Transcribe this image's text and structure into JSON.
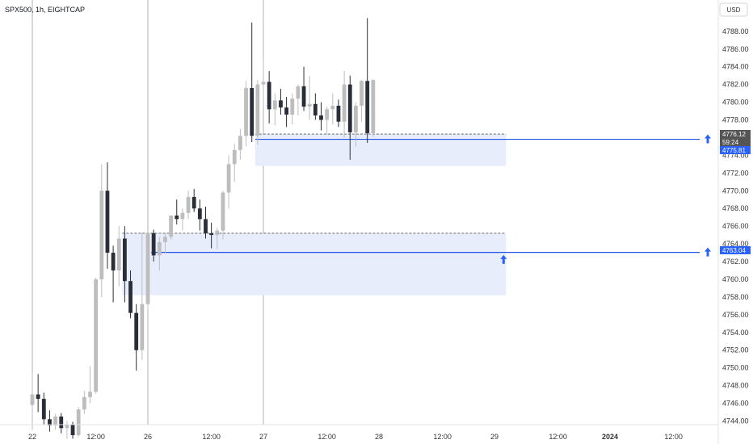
{
  "header": {
    "symbol_label": "SPX500, 1h, EIGHTCAP"
  },
  "currency_button": "USD",
  "colors": {
    "up_candle": "#bdbdbd",
    "down_candle": "#2a2e39",
    "zone_fill": "#e8edfc",
    "level_line": "#1e53e5",
    "badge_blue": "#2962ff",
    "badge_dark": "#555555",
    "grid_vline": "#b0b0b0",
    "axis_text": "#333333"
  },
  "price_badges": [
    {
      "value": "4776.12",
      "style": "dark"
    },
    {
      "value": "59:24",
      "style": "dark"
    },
    {
      "value": "4775.81",
      "style": "blue"
    },
    {
      "value": "4763.04",
      "style": "blue"
    }
  ],
  "chart_data": {
    "type": "candlestick",
    "y_axis": {
      "range": [
        4743,
        4790
      ],
      "ticks": [
        "4744.00",
        "4746.00",
        "4748.00",
        "4750.00",
        "4752.00",
        "4754.00",
        "4756.00",
        "4758.00",
        "4760.00",
        "4762.00",
        "4764.00",
        "4766.00",
        "4768.00",
        "4770.00",
        "4772.00",
        "4774.00",
        "4776.00",
        "4778.00",
        "4780.00",
        "4782.00",
        "4784.00",
        "4786.00",
        "4788.00"
      ]
    },
    "x_axis": {
      "ticks": [
        {
          "label": "22",
          "bar": 0,
          "bold": false
        },
        {
          "label": "12:00",
          "bar": 11,
          "bold": false
        },
        {
          "label": "26",
          "bar": 20,
          "bold": false
        },
        {
          "label": "12:00",
          "bar": 31,
          "bold": false
        },
        {
          "label": "27",
          "bar": 40,
          "bold": false
        },
        {
          "label": "12:00",
          "bar": 51,
          "bold": false
        },
        {
          "label": "28",
          "bar": 60,
          "bold": false
        },
        {
          "label": "12:00",
          "bar": 71,
          "bold": false
        },
        {
          "label": "29",
          "bar": 80,
          "bold": false
        },
        {
          "label": "12:00",
          "bar": 91,
          "bold": false
        },
        {
          "label": "2024",
          "bar": 100,
          "bold": true
        },
        {
          "label": "12:00",
          "bar": 111,
          "bold": false
        }
      ],
      "session_lines_at_bar": [
        0,
        20,
        40
      ]
    },
    "candles": [
      [
        4745.8,
        4749.5,
        4743.0,
        4747.0
      ],
      [
        4747.0,
        4749.3,
        4745.0,
        4746.5
      ],
      [
        4746.5,
        4747.2,
        4743.6,
        4744.2
      ],
      [
        4744.2,
        4745.2,
        4742.8,
        4743.5
      ],
      [
        4743.5,
        4744.8,
        4743.0,
        4744.5
      ],
      [
        4744.5,
        4744.9,
        4742.6,
        4743.2
      ],
      [
        4743.2,
        4744.0,
        4742.0,
        4743.6
      ],
      [
        4743.6,
        4743.9,
        4742.0,
        4742.4
      ],
      [
        4742.4,
        4745.6,
        4742.2,
        4745.3
      ],
      [
        4745.3,
        4747.4,
        4744.8,
        4746.7
      ],
      [
        4746.7,
        4750.2,
        4746.0,
        4747.3
      ],
      [
        4747.3,
        4760.2,
        4747.1,
        4760.0
      ],
      [
        4760.0,
        4773.0,
        4758.0,
        4770.0
      ],
      [
        4770.0,
        4773.2,
        4761.2,
        4763.0
      ],
      [
        4763.0,
        4763.8,
        4757.4,
        4761.0
      ],
      [
        4761.0,
        4766.0,
        4759.2,
        4764.6
      ],
      [
        4764.6,
        4766.0,
        4757.4,
        4759.8
      ],
      [
        4759.8,
        4761.0,
        4755.6,
        4756.2
      ],
      [
        4756.2,
        4757.2,
        4749.7,
        4752.0
      ],
      [
        4752.0,
        4765.3,
        4750.9,
        4757.2
      ],
      [
        4757.2,
        4765.5,
        4756.5,
        4765.2
      ],
      [
        4765.2,
        4765.6,
        4762.0,
        4762.7
      ],
      [
        4762.7,
        4764.8,
        4761.0,
        4764.2
      ],
      [
        4764.2,
        4765.3,
        4763.0,
        4764.8
      ],
      [
        4764.8,
        4767.2,
        4764.5,
        4767.2
      ],
      [
        4767.2,
        4769.0,
        4766.2,
        4766.8
      ],
      [
        4766.8,
        4768.0,
        4765.5,
        4767.5
      ],
      [
        4767.5,
        4770.0,
        4766.8,
        4769.3
      ],
      [
        4769.3,
        4770.2,
        4767.6,
        4768.0
      ],
      [
        4768.0,
        4769.0,
        4765.5,
        4766.8
      ],
      [
        4766.8,
        4768.2,
        4764.6,
        4765.2
      ],
      [
        4765.2,
        4766.4,
        4763.5,
        4765.0
      ],
      [
        4765.0,
        4765.8,
        4763.4,
        4765.5
      ],
      [
        4765.5,
        4770.0,
        4764.5,
        4769.8
      ],
      [
        4769.8,
        4774.0,
        4768.0,
        4773.0
      ],
      [
        4773.0,
        4775.3,
        4771.0,
        4774.6
      ],
      [
        4774.6,
        4777.0,
        4773.5,
        4776.2
      ],
      [
        4776.2,
        4782.4,
        4775.0,
        4781.6
      ],
      [
        4781.6,
        4789.0,
        4775.5,
        4776.2
      ],
      [
        4776.2,
        4782.5,
        4775.2,
        4782.0
      ],
      [
        4782.0,
        4785.0,
        4779.5,
        4782.3
      ],
      [
        4782.3,
        4783.5,
        4777.6,
        4779.2
      ],
      [
        4779.2,
        4781.0,
        4777.4,
        4780.2
      ],
      [
        4780.2,
        4781.5,
        4778.6,
        4779.4
      ],
      [
        4779.4,
        4780.6,
        4777.2,
        4778.6
      ],
      [
        4778.6,
        4781.0,
        4777.5,
        4780.4
      ],
      [
        4780.4,
        4782.0,
        4778.5,
        4781.8
      ],
      [
        4781.8,
        4784.0,
        4779.0,
        4779.5
      ],
      [
        4779.5,
        4783.0,
        4778.0,
        4779.8
      ],
      [
        4779.8,
        4781.0,
        4778.0,
        4778.5
      ],
      [
        4778.5,
        4780.0,
        4776.8,
        4778.0
      ],
      [
        4778.0,
        4779.5,
        4776.4,
        4779.2
      ],
      [
        4779.2,
        4781.0,
        4777.5,
        4779.6
      ],
      [
        4779.6,
        4780.3,
        4777.2,
        4777.8
      ],
      [
        4777.8,
        4783.5,
        4776.0,
        4782.0
      ],
      [
        4782.0,
        4783.0,
        4773.5,
        4776.6
      ],
      [
        4776.6,
        4780.0,
        4775.0,
        4779.6
      ],
      [
        4779.6,
        4782.5,
        4777.8,
        4782.4
      ],
      [
        4782.4,
        4789.5,
        4775.4,
        4776.5
      ],
      [
        4776.5,
        4782.6,
        4776.1,
        4782.5
      ]
    ],
    "zones": [
      {
        "from_bar": 39,
        "to_bar": 82,
        "top": 4776.4,
        "bottom": 4772.8,
        "dashed_at": 4776.4
      },
      {
        "from_bar": 16,
        "to_bar": 82,
        "top": 4765.2,
        "bottom": 4758.2,
        "dashed_at": 4765.2
      }
    ],
    "level_lines": [
      {
        "value": 4775.81,
        "from_bar": 39,
        "arrow_on_line": false
      },
      {
        "value": 4763.04,
        "from_bar": 21,
        "arrow_on_line": false
      }
    ],
    "up_arrows": [
      {
        "bar": 82,
        "price": 4762.2
      }
    ]
  }
}
